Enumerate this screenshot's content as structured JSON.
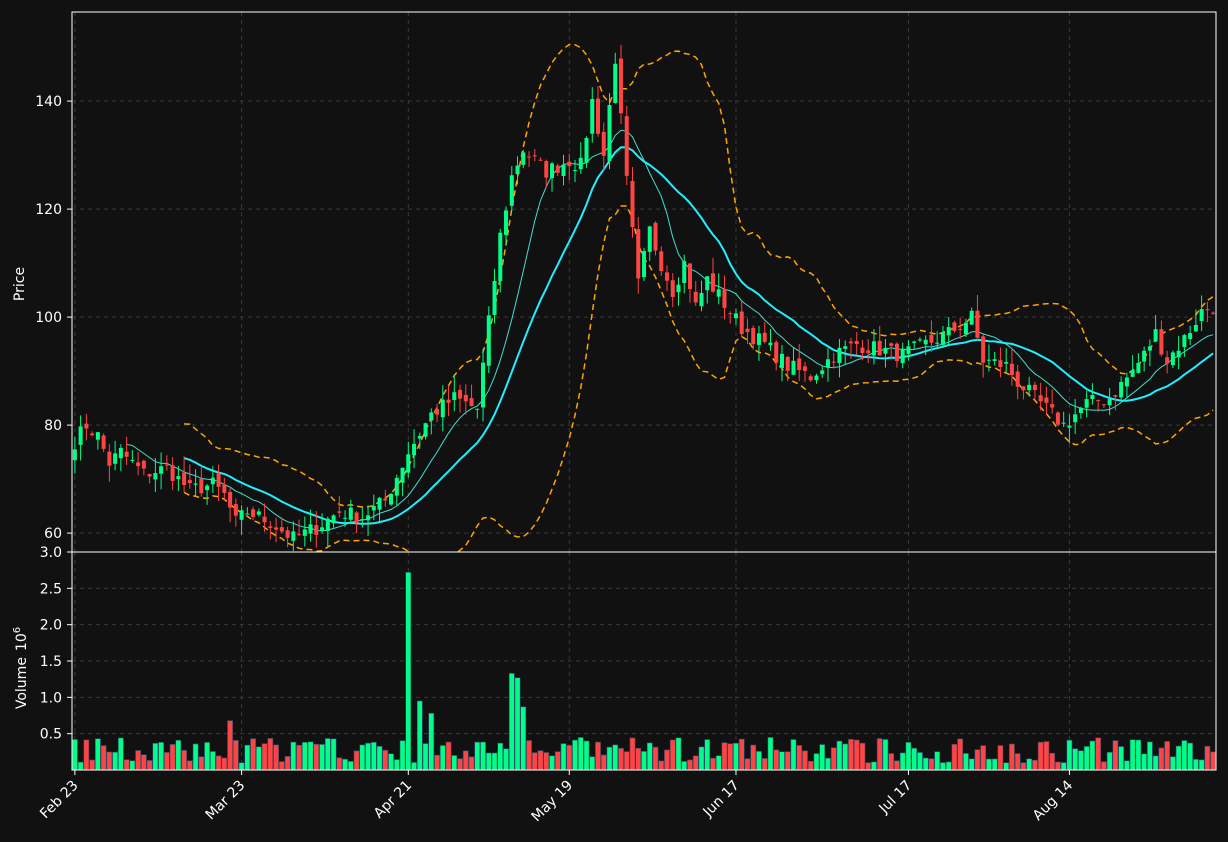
{
  "colors": {
    "background": "#111111",
    "up": "#00ff88",
    "down": "#ff4444",
    "bollinger": "#ffa500",
    "ma_fast": "#40e0d0",
    "ma_slow": "#22eeff",
    "grid": "#3a3a3a",
    "frame": "#ffffff"
  },
  "chart_data": [
    {
      "type": "candlestick",
      "title": "",
      "ylabel": "Price",
      "ylim": [
        56.5,
        156.5
      ],
      "yticks": [
        60,
        80,
        100,
        120,
        140
      ],
      "grid": true,
      "xtick_labels": [
        {
          "date": "2024-02-23",
          "label": "Feb 23"
        },
        {
          "date": "2024-03-23",
          "label": "Mar 23"
        },
        {
          "date": "2024-04-21",
          "label": "Apr 21"
        },
        {
          "date": "2024-05-19",
          "label": "May 19"
        },
        {
          "date": "2024-06-17",
          "label": "Jun 17"
        },
        {
          "date": "2024-07-17",
          "label": "Jul 17"
        },
        {
          "date": "2024-08-14",
          "label": "Aug 14"
        }
      ],
      "series": [
        {
          "kind": "ohlc",
          "note": "daily bars Feb 23 – Aug 21, close path (approximate)",
          "close_path": [
            [
              0,
              77
            ],
            [
              2,
              80
            ],
            [
              4,
              78
            ],
            [
              6,
              73
            ],
            [
              8,
              75
            ],
            [
              12,
              71
            ],
            [
              16,
              72
            ],
            [
              20,
              68
            ],
            [
              24,
              69
            ],
            [
              26,
              67
            ],
            [
              28,
              62
            ],
            [
              30,
              64
            ],
            [
              34,
              62
            ],
            [
              38,
              59
            ],
            [
              42,
              61
            ],
            [
              46,
              64
            ],
            [
              50,
              63
            ],
            [
              54,
              66
            ],
            [
              58,
              75
            ],
            [
              62,
              82
            ],
            [
              66,
              85
            ],
            [
              70,
              83
            ],
            [
              74,
              115
            ],
            [
              76,
              126
            ],
            [
              78,
              131
            ],
            [
              82,
              127
            ],
            [
              86,
              129
            ],
            [
              88,
              128
            ],
            [
              90,
              140
            ],
            [
              92,
              130
            ],
            [
              94,
              148
            ],
            [
              96,
              125
            ],
            [
              98,
              106
            ],
            [
              100,
              116
            ],
            [
              102,
              110
            ],
            [
              104,
              105
            ],
            [
              106,
              110
            ],
            [
              108,
              102
            ],
            [
              110,
              107
            ],
            [
              112,
              104
            ],
            [
              116,
              98
            ],
            [
              120,
              95
            ],
            [
              124,
              91
            ],
            [
              128,
              89
            ],
            [
              132,
              93
            ],
            [
              136,
              95
            ],
            [
              140,
              94
            ],
            [
              144,
              93
            ],
            [
              148,
              95
            ],
            [
              152,
              97
            ],
            [
              156,
              100
            ],
            [
              158,
              92
            ],
            [
              162,
              91
            ],
            [
              164,
              88
            ],
            [
              168,
              84
            ],
            [
              172,
              80
            ],
            [
              176,
              84
            ],
            [
              180,
              85
            ],
            [
              184,
              90
            ],
            [
              186,
              93
            ],
            [
              188,
              97
            ],
            [
              190,
              92
            ],
            [
              193,
              96
            ],
            [
              196,
              101
            ],
            [
              198,
              102
            ]
          ]
        }
      ],
      "indicators": [
        {
          "name": "",
          "kind": "moving_average_fast",
          "window": 10
        },
        {
          "name": "",
          "kind": "moving_average_slow",
          "window": 20
        },
        {
          "name": "",
          "kind": "bollinger_bands",
          "window": 20,
          "k": 2
        }
      ]
    },
    {
      "type": "bar",
      "ylabel": "Volume",
      "yunit_label": "10",
      "yunit_exp": "6",
      "ylim": [
        0,
        3.0
      ],
      "yticks": [
        0.5,
        1.0,
        1.5,
        2.0,
        2.5,
        3.0
      ],
      "ytick_labels": [
        "0.5",
        "1.0",
        "1.5",
        "2.0",
        "2.5",
        "3.0"
      ],
      "grid": true,
      "peaks": [
        {
          "date": "2024-04-21",
          "value": 2.72
        },
        {
          "date": "2024-03-21",
          "value": 0.68
        },
        {
          "date": "2024-05-09",
          "value": 1.33
        },
        {
          "date": "2024-05-10",
          "value": 1.27
        },
        {
          "date": "2024-05-11",
          "value": 0.87
        },
        {
          "date": "2024-04-23",
          "value": 0.95
        },
        {
          "date": "2024-04-25",
          "value": 0.78
        }
      ]
    }
  ],
  "price_ytick_labels": [
    "60",
    "80",
    "100",
    "120",
    "140"
  ]
}
